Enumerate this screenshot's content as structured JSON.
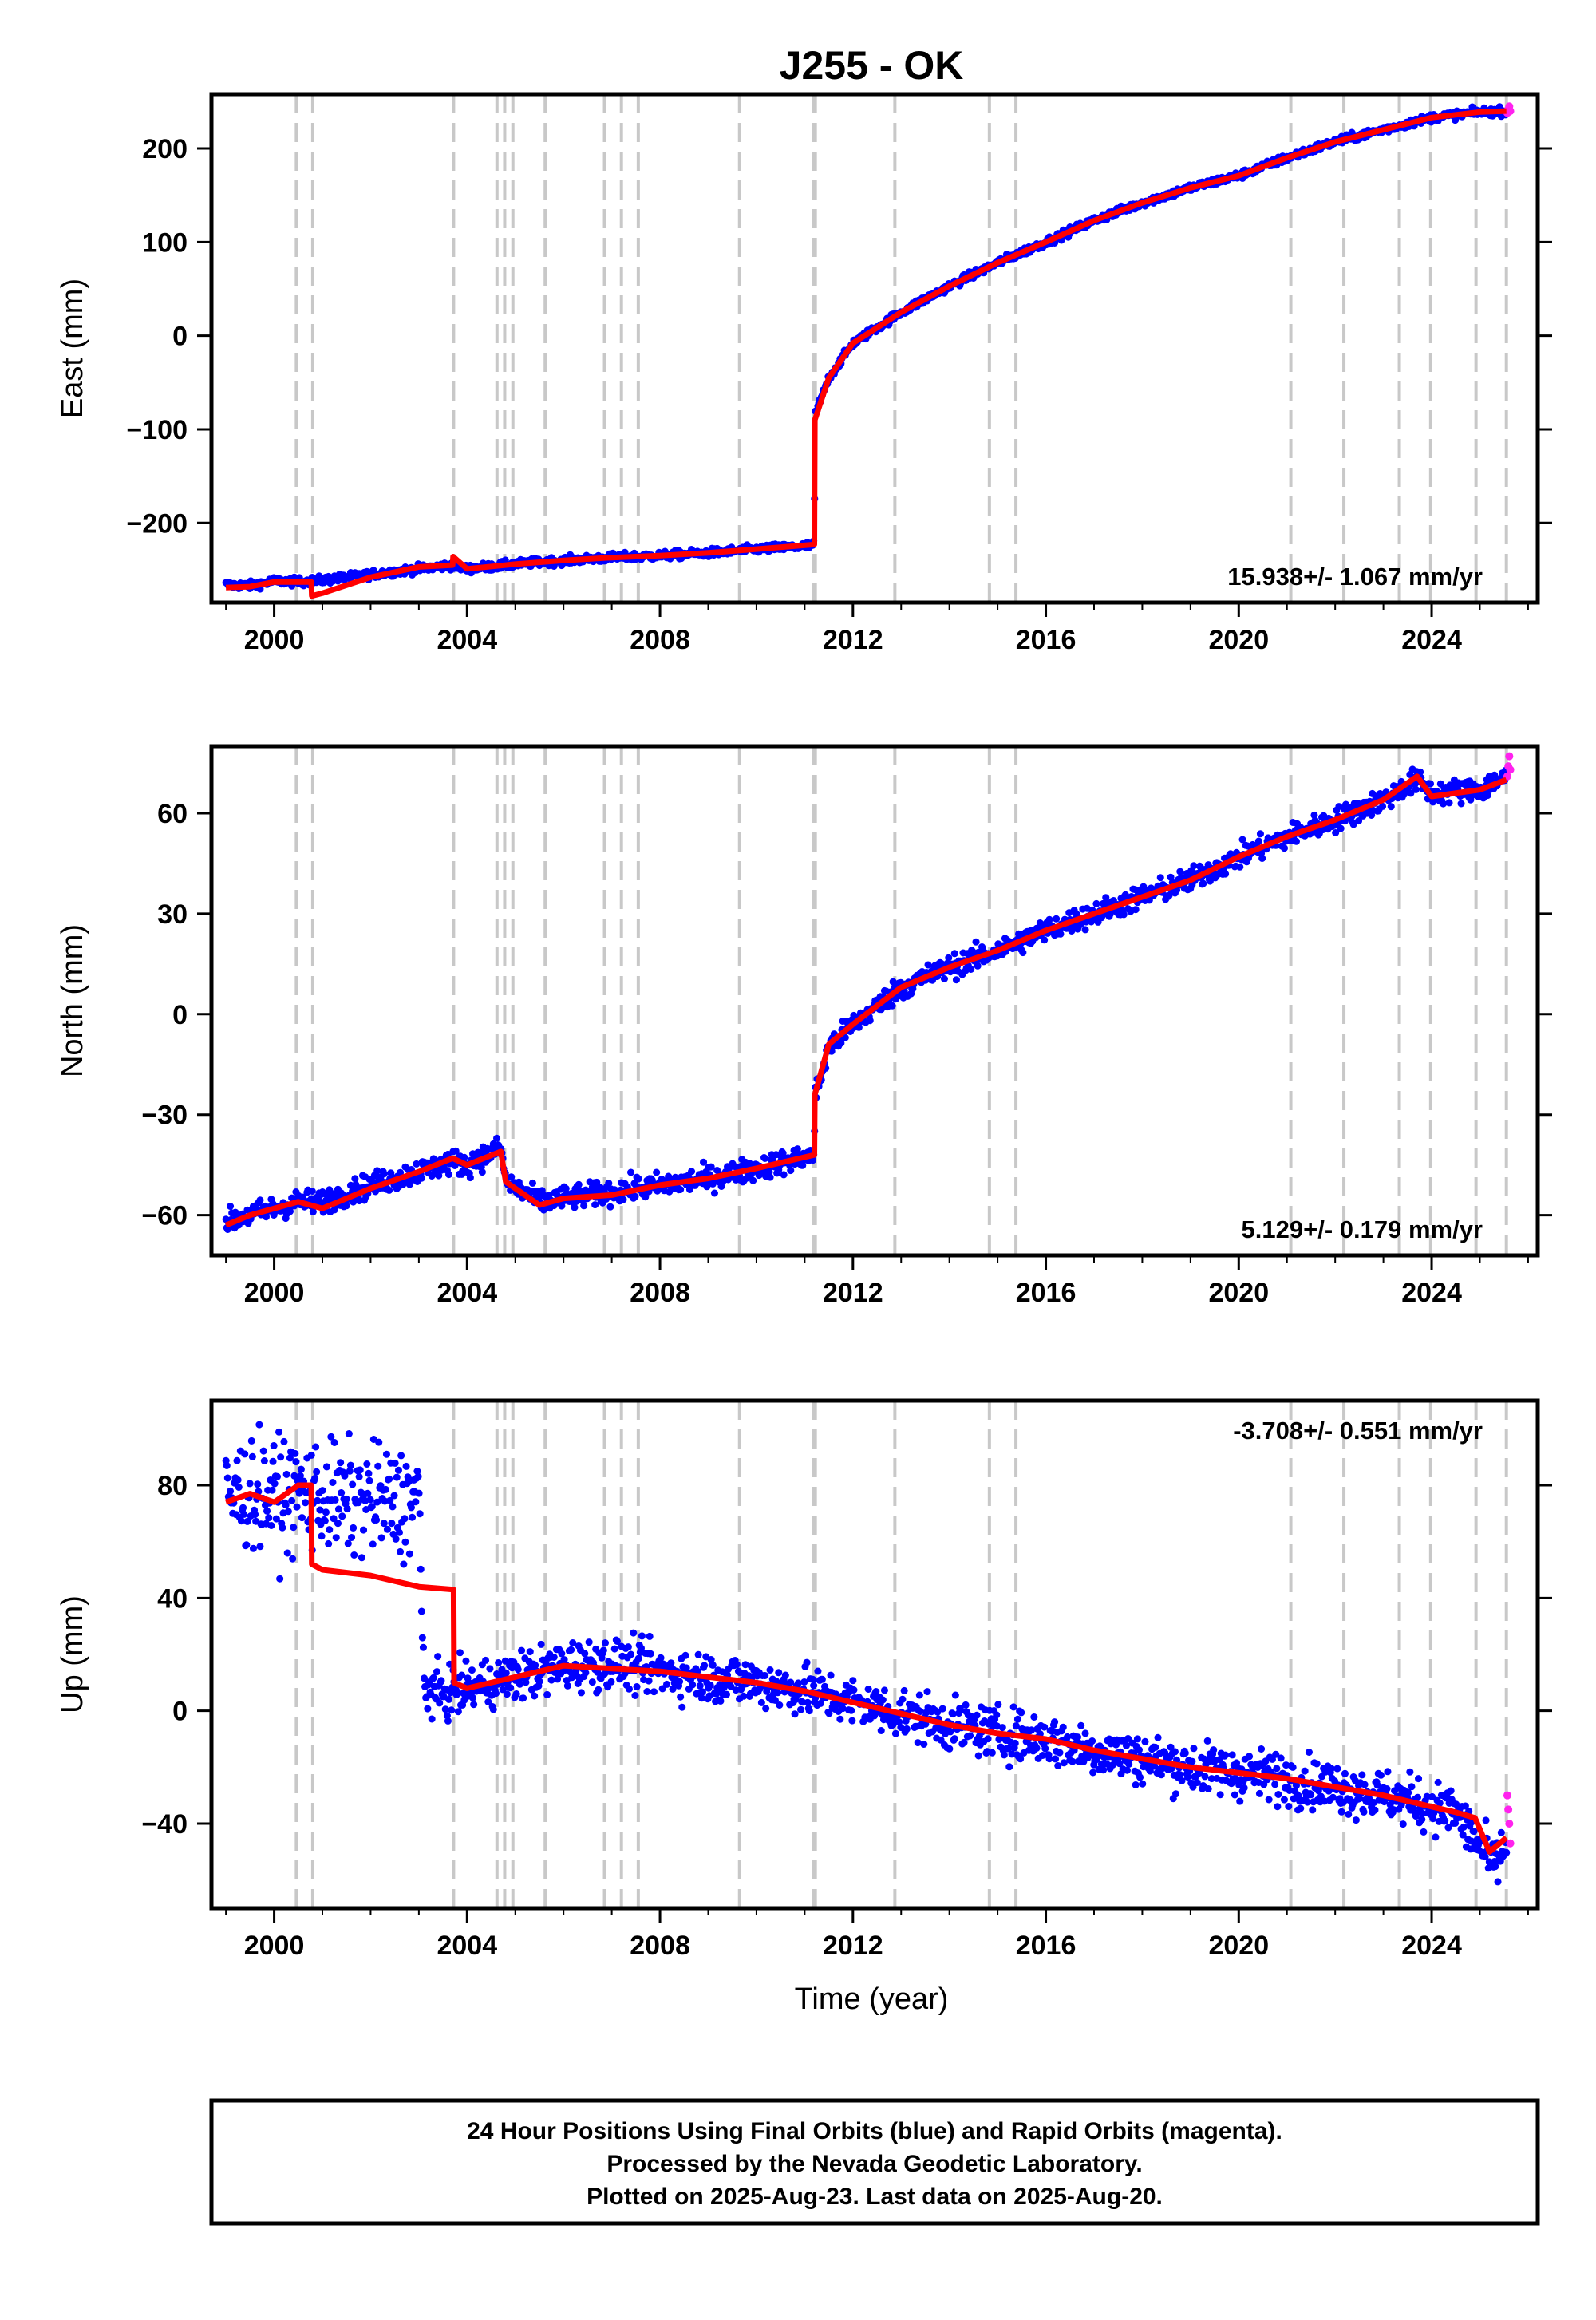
{
  "figure": {
    "title": "J255 - OK",
    "xlabel": "Time (year)",
    "caption_lines": [
      "24 Hour Positions Using Final Orbits (blue) and Rapid Orbits (magenta).",
      "Processed by the Nevada Geodetic Laboratory.",
      "Plotted on 2025-Aug-23. Last data on 2025-Aug-20."
    ],
    "colors": {
      "final_orbits": "#0000ff",
      "rapid_orbits": "#ff22ee",
      "model": "#ff0000",
      "equipment_change_lines": "#c8c8c8"
    }
  },
  "chart_data": [
    {
      "type": "scatter",
      "panel": "east",
      "ylabel": "East (mm)",
      "xlim": [
        1998.7,
        2026.2
      ],
      "ylim": [
        -285,
        258
      ],
      "yticks": [
        -200,
        -100,
        0,
        100,
        200
      ],
      "xticks": [
        2000,
        2004,
        2008,
        2012,
        2016,
        2020,
        2024
      ],
      "rate_label": "15.938+/- 1.067 mm/yr",
      "rate_position": "bottom-right",
      "steps": [
        2000.46,
        2000.8,
        2003.72,
        2004.62,
        2004.78,
        2004.95,
        2005.62,
        2006.85,
        2007.2,
        2007.55,
        2009.65,
        2011.19,
        2011.22,
        2012.87,
        2014.83,
        2015.38,
        2021.08,
        2022.18,
        2023.33,
        2023.98,
        2024.92,
        2025.55
      ],
      "series": [
        {
          "name": "Final Orbits",
          "x": [
            1999.0,
            1999.5,
            2000.0,
            2000.5,
            2000.77,
            2001.0,
            2002.0,
            2003.0,
            2003.7,
            2004.0,
            2005.0,
            2006.0,
            2007.0,
            2008.0,
            2009.0,
            2010.0,
            2011.0,
            2011.2,
            2011.21,
            2011.5,
            2012.0,
            2013.0,
            2014.0,
            2015.0,
            2016.0,
            2017.0,
            2018.0,
            2019.0,
            2020.0,
            2021.0,
            2022.0,
            2023.0,
            2024.0,
            2025.0,
            2025.55
          ],
          "y": [
            -266,
            -267,
            -262,
            -263,
            -262,
            -261,
            -255,
            -249,
            -245,
            -249,
            -244,
            -240,
            -237,
            -235,
            -232,
            -228,
            -225,
            -223,
            -85,
            -45,
            -8,
            25,
            53,
            78,
            100,
            123,
            142,
            158,
            171,
            190,
            207,
            220,
            233,
            239,
            240
          ]
        },
        {
          "name": "Rapid Orbits",
          "x": [
            2025.57,
            2025.59,
            2025.61,
            2025.63
          ],
          "y": [
            238,
            242,
            245,
            240
          ]
        },
        {
          "name": "Model",
          "x": [
            1999.0,
            1999.5,
            2000.0,
            2000.77,
            2000.78,
            2001.0,
            2002.0,
            2003.0,
            2003.7,
            2003.71,
            2004.0,
            2005.0,
            2006.0,
            2007.0,
            2008.0,
            2009.0,
            2010.0,
            2011.2,
            2011.21,
            2011.5,
            2012.0,
            2013.0,
            2014.0,
            2015.0,
            2016.0,
            2017.0,
            2018.0,
            2019.0,
            2020.0,
            2021.0,
            2022.0,
            2023.0,
            2024.0,
            2025.0,
            2025.55
          ],
          "y": [
            -269,
            -268,
            -263,
            -263,
            -278,
            -275,
            -258,
            -247,
            -245,
            -236,
            -249,
            -244,
            -240,
            -237,
            -235,
            -232,
            -228,
            -223,
            -90,
            -45,
            -8,
            25,
            53,
            78,
            100,
            123,
            142,
            158,
            171,
            190,
            207,
            220,
            233,
            239,
            240
          ]
        }
      ]
    },
    {
      "type": "scatter",
      "panel": "north",
      "ylabel": "North (mm)",
      "xlim": [
        1998.7,
        2026.2
      ],
      "ylim": [
        -72,
        80
      ],
      "yticks": [
        -60,
        -30,
        0,
        30,
        60
      ],
      "xticks": [
        2000,
        2004,
        2008,
        2012,
        2016,
        2020,
        2024
      ],
      "rate_label": "5.129+/- 0.179 mm/yr",
      "rate_position": "bottom-right",
      "steps": [
        2000.46,
        2000.8,
        2003.72,
        2004.62,
        2004.78,
        2004.95,
        2005.62,
        2006.85,
        2007.2,
        2007.55,
        2009.65,
        2011.19,
        2011.22,
        2012.87,
        2014.83,
        2015.38,
        2021.08,
        2022.18,
        2023.33,
        2023.98,
        2024.92,
        2025.55
      ],
      "series": [
        {
          "name": "Final Orbits",
          "x": [
            1999.0,
            1999.5,
            2000.0,
            2000.5,
            2001.0,
            2002.0,
            2003.0,
            2003.7,
            2004.0,
            2004.7,
            2004.8,
            2005.5,
            2006.0,
            2007.0,
            2008.0,
            2009.0,
            2010.0,
            2011.2,
            2011.21,
            2011.5,
            2012.0,
            2013.0,
            2014.0,
            2015.0,
            2016.0,
            2017.0,
            2018.0,
            2019.0,
            2020.0,
            2021.0,
            2022.0,
            2023.0,
            2023.7,
            2024.0,
            2025.0,
            2025.55
          ],
          "y": [
            -62,
            -60,
            -58,
            -56,
            -56,
            -51,
            -47,
            -44,
            -45,
            -40,
            -50,
            -56,
            -55,
            -53,
            -51,
            -49,
            -46,
            -42,
            -25,
            -10,
            -3,
            8,
            14,
            19,
            25,
            30,
            35,
            40,
            47,
            53,
            58,
            64,
            70,
            66,
            67,
            71
          ]
        },
        {
          "name": "Rapid Orbits",
          "x": [
            2025.57,
            2025.59,
            2025.61,
            2025.63
          ],
          "y": [
            71,
            74,
            77,
            73
          ]
        },
        {
          "name": "Model",
          "x": [
            1999.0,
            1999.5,
            2000.0,
            2000.5,
            2001.0,
            2002.0,
            2003.0,
            2003.7,
            2004.0,
            2004.7,
            2004.8,
            2005.5,
            2006.0,
            2007.0,
            2008.0,
            2009.0,
            2010.0,
            2011.2,
            2011.21,
            2011.5,
            2012.0,
            2013.0,
            2014.0,
            2015.0,
            2016.0,
            2017.0,
            2018.0,
            2019.0,
            2020.0,
            2021.0,
            2022.0,
            2023.0,
            2023.7,
            2024.0,
            2025.0,
            2025.55
          ],
          "y": [
            -63,
            -60,
            -58,
            -56,
            -58,
            -52,
            -47,
            -43,
            -45,
            -41,
            -50,
            -57,
            -55,
            -54,
            -51,
            -49,
            -46,
            -42,
            -24,
            -9,
            -3,
            8,
            14,
            19,
            25,
            30,
            35,
            40,
            47,
            53,
            58,
            64,
            71,
            65,
            67,
            70
          ]
        }
      ]
    },
    {
      "type": "scatter",
      "panel": "up",
      "ylabel": "Up (mm)",
      "xlim": [
        1998.7,
        2026.2
      ],
      "ylim": [
        -70,
        110
      ],
      "yticks": [
        -40,
        0,
        40,
        80
      ],
      "xticks": [
        2000,
        2004,
        2008,
        2012,
        2016,
        2020,
        2024
      ],
      "rate_label": "-3.708+/- 0.551 mm/yr",
      "rate_position": "top-right",
      "steps": [
        2000.46,
        2000.8,
        2003.72,
        2004.62,
        2004.78,
        2004.95,
        2005.62,
        2006.85,
        2007.2,
        2007.55,
        2009.65,
        2011.19,
        2011.22,
        2012.87,
        2014.83,
        2015.38,
        2021.08,
        2022.18,
        2023.33,
        2023.98,
        2024.92,
        2025.55
      ],
      "series": [
        {
          "name": "Final Orbits",
          "x": [
            1999.0,
            1999.5,
            2000.0,
            2000.5,
            2001.0,
            2001.5,
            2002.0,
            2002.5,
            2003.0,
            2003.1,
            2003.5,
            2004.0,
            2005.0,
            2006.0,
            2007.0,
            2008.0,
            2009.0,
            2010.0,
            2011.0,
            2012.0,
            2013.0,
            2014.0,
            2015.0,
            2016.0,
            2017.0,
            2018.0,
            2019.0,
            2020.0,
            2021.0,
            2022.0,
            2023.0,
            2024.0,
            2024.5,
            2025.0,
            2025.3,
            2025.55
          ],
          "y": [
            75,
            78,
            76,
            77,
            76,
            74,
            75,
            73,
            76,
            8,
            6,
            8,
            12,
            16,
            17,
            14,
            12,
            10,
            7,
            3,
            -1,
            -5,
            -8,
            -10,
            -14,
            -17,
            -20,
            -22,
            -24,
            -27,
            -30,
            -34,
            -36,
            -48,
            -55,
            -48
          ]
        },
        {
          "name": "Rapid Orbits",
          "x": [
            2025.57,
            2025.59,
            2025.61,
            2025.63
          ],
          "y": [
            -30,
            -35,
            -40,
            -47
          ]
        },
        {
          "name": "Model",
          "x": [
            1999.0,
            1999.5,
            2000.0,
            2000.5,
            2000.77,
            2000.78,
            2001.0,
            2002.0,
            2003.0,
            2003.72,
            2003.73,
            2004.0,
            2005.0,
            2006.0,
            2007.0,
            2008.0,
            2009.0,
            2010.0,
            2011.0,
            2012.0,
            2013.0,
            2014.0,
            2015.0,
            2016.0,
            2017.0,
            2018.0,
            2019.0,
            2020.0,
            2021.0,
            2022.0,
            2023.0,
            2024.0,
            2024.5,
            2024.9,
            2025.2,
            2025.55
          ],
          "y": [
            74,
            77,
            74,
            80,
            80,
            52,
            50,
            48,
            44,
            43,
            10,
            8,
            12,
            16,
            15,
            14,
            12,
            10,
            7,
            3,
            -1,
            -5,
            -8,
            -10,
            -14,
            -17,
            -20,
            -22,
            -24,
            -27,
            -30,
            -34,
            -36,
            -38,
            -50,
            -45
          ]
        }
      ]
    }
  ]
}
